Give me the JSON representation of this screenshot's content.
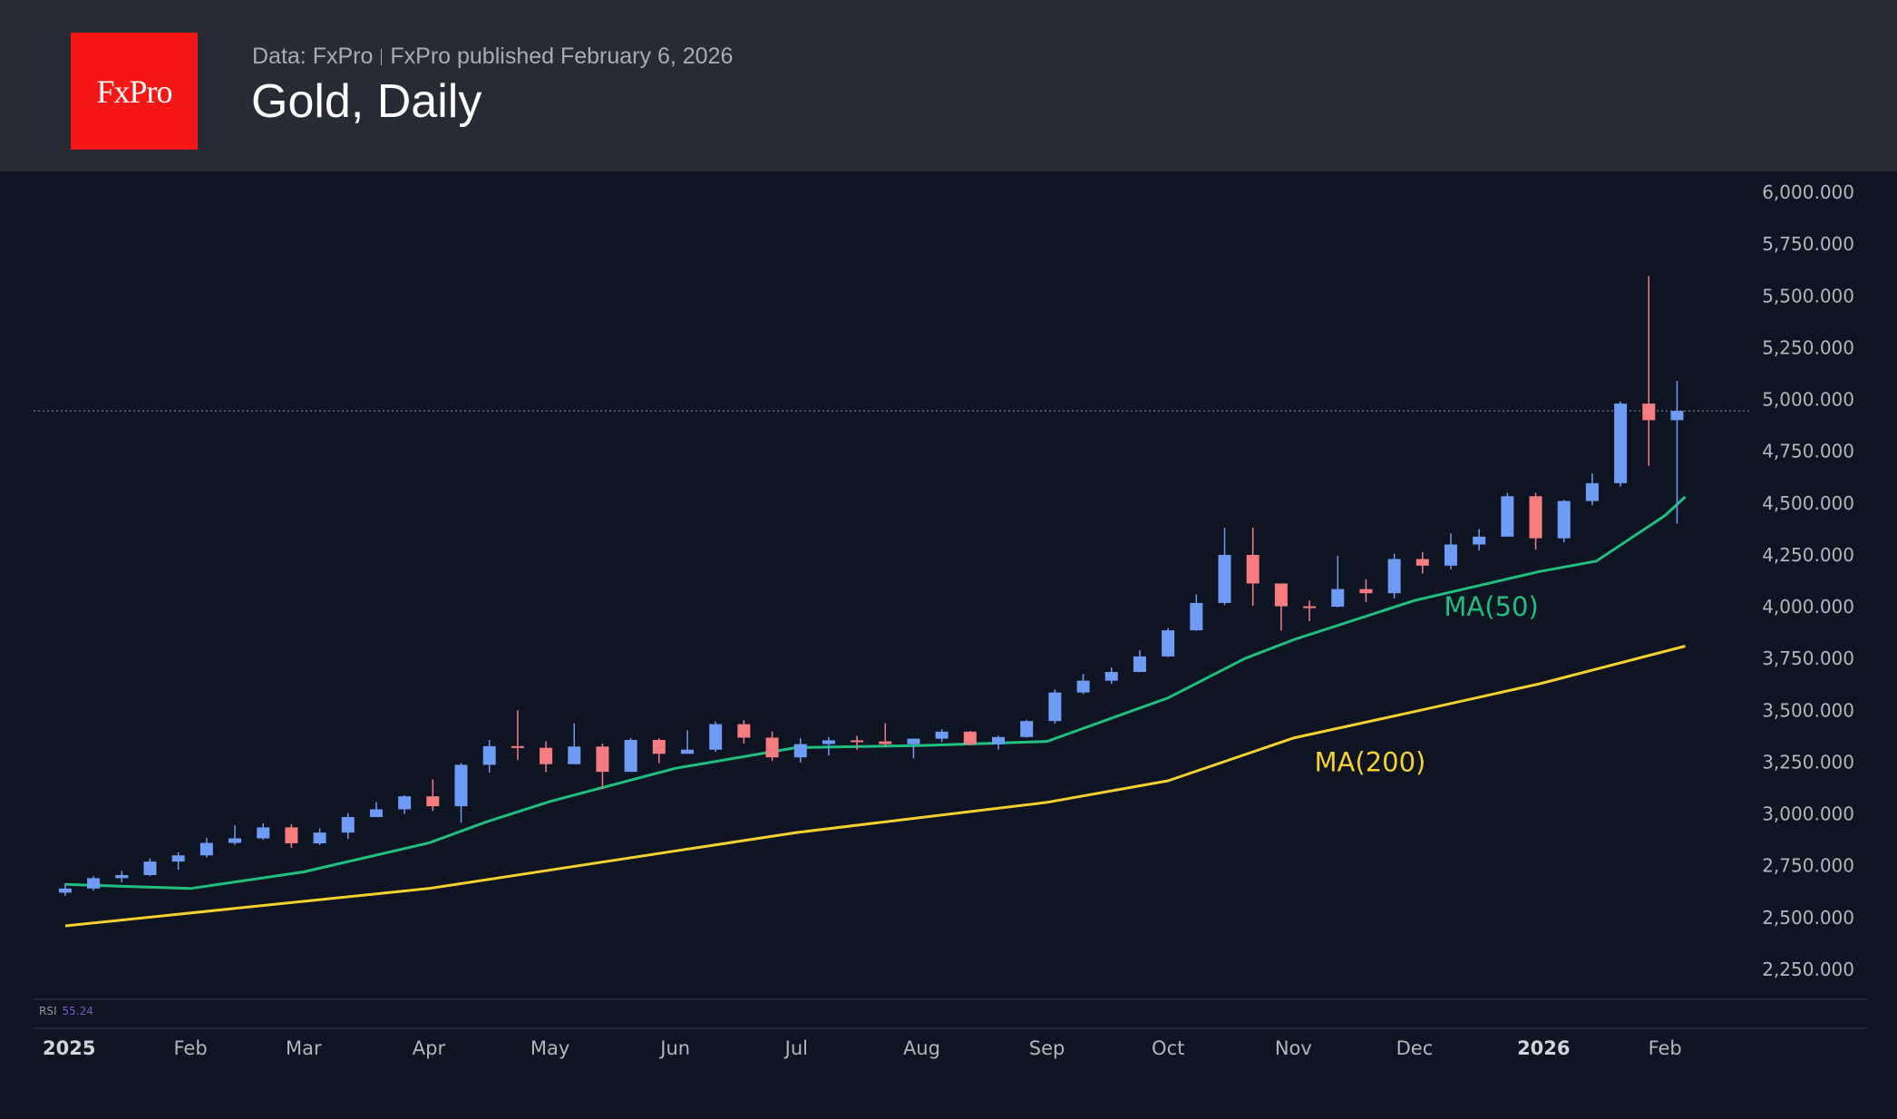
{
  "header": {
    "logo_text": "FxPro",
    "source": "Data: FxPro",
    "published": "FxPro published February 6, 2026",
    "title": "Gold, Daily"
  },
  "indicator": {
    "label": "RSI",
    "value": "55.24",
    "color": "#7e57c2"
  },
  "colors": {
    "up": "#6e9bf5",
    "down": "#f77c80",
    "ma50": "#1fbf7f",
    "ma200": "#f5d130",
    "background": "#0e1421",
    "header": "#282b36",
    "logo": "#f51616"
  },
  "chart_data": {
    "type": "candlestick",
    "title": "Gold, Daily",
    "ylim": [
      2125,
      6000
    ],
    "yticks": [
      "6,000.000",
      "5,750.000",
      "5,500.000",
      "5,250.000",
      "5,000.000",
      "4,750.000",
      "4,500.000",
      "4,250.000",
      "4,000.000",
      "3,750.000",
      "3,500.000",
      "3,250.000",
      "3,000.000",
      "2,750.000",
      "2,500.000",
      "2,250.000"
    ],
    "ytick_values": [
      6000,
      5750,
      5500,
      5250,
      5000,
      4750,
      4500,
      4250,
      4000,
      3750,
      3500,
      3250,
      3000,
      2750,
      2500,
      2250
    ],
    "xticks": [
      {
        "label": "2025",
        "date": "2025-01-01",
        "bold": true
      },
      {
        "label": "Feb",
        "date": "2025-02-01"
      },
      {
        "label": "Mar",
        "date": "2025-03-01"
      },
      {
        "label": "Apr",
        "date": "2025-04-01"
      },
      {
        "label": "May",
        "date": "2025-05-01"
      },
      {
        "label": "Jun",
        "date": "2025-06-01"
      },
      {
        "label": "Jul",
        "date": "2025-07-01"
      },
      {
        "label": "Aug",
        "date": "2025-08-01"
      },
      {
        "label": "Sep",
        "date": "2025-09-01"
      },
      {
        "label": "Oct",
        "date": "2025-10-01"
      },
      {
        "label": "Nov",
        "date": "2025-11-01"
      },
      {
        "label": "Dec",
        "date": "2025-12-01"
      },
      {
        "label": "2026",
        "date": "2026-01-01",
        "bold": true
      },
      {
        "label": "Feb",
        "date": "2026-02-01"
      }
    ],
    "last_price": 4945,
    "candles_ohlc": [
      [
        "2025-01-03",
        2620,
        2665,
        2605,
        2640
      ],
      [
        "2025-01-10",
        2640,
        2700,
        2630,
        2690
      ],
      [
        "2025-01-17",
        2690,
        2725,
        2670,
        2705
      ],
      [
        "2025-01-24",
        2705,
        2785,
        2700,
        2770
      ],
      [
        "2025-01-31",
        2770,
        2815,
        2730,
        2800
      ],
      [
        "2025-02-07",
        2800,
        2885,
        2790,
        2860
      ],
      [
        "2025-02-14",
        2860,
        2945,
        2850,
        2882
      ],
      [
        "2025-02-21",
        2882,
        2955,
        2875,
        2935
      ],
      [
        "2025-02-28",
        2935,
        2950,
        2835,
        2858
      ],
      [
        "2025-03-07",
        2858,
        2930,
        2850,
        2910
      ],
      [
        "2025-03-14",
        2910,
        3005,
        2880,
        2985
      ],
      [
        "2025-03-21",
        2985,
        3057,
        2990,
        3022
      ],
      [
        "2025-03-28",
        3022,
        3090,
        3000,
        3085
      ],
      [
        "2025-04-04",
        3085,
        3167,
        3015,
        3037
      ],
      [
        "2025-04-11",
        3037,
        3245,
        2957,
        3237
      ],
      [
        "2025-04-18",
        3237,
        3357,
        3200,
        3327
      ],
      [
        "2025-04-25",
        3327,
        3500,
        3260,
        3319
      ],
      [
        "2025-05-02",
        3319,
        3350,
        3202,
        3240
      ],
      [
        "2025-05-09",
        3240,
        3437,
        3240,
        3325
      ],
      [
        "2025-05-16",
        3325,
        3340,
        3120,
        3203
      ],
      [
        "2025-05-23",
        3203,
        3366,
        3205,
        3357
      ],
      [
        "2025-05-30",
        3357,
        3365,
        3245,
        3290
      ],
      [
        "2025-06-06",
        3290,
        3403,
        3290,
        3310
      ],
      [
        "2025-06-13",
        3310,
        3446,
        3300,
        3433
      ],
      [
        "2025-06-20",
        3433,
        3452,
        3340,
        3368
      ],
      [
        "2025-06-27",
        3368,
        3398,
        3255,
        3273
      ],
      [
        "2025-07-04",
        3273,
        3365,
        3248,
        3337
      ],
      [
        "2025-07-11",
        3337,
        3370,
        3282,
        3355
      ],
      [
        "2025-07-18",
        3355,
        3377,
        3309,
        3350
      ],
      [
        "2025-07-25",
        3350,
        3438,
        3324,
        3337
      ],
      [
        "2025-08-01",
        3337,
        3363,
        3268,
        3363
      ],
      [
        "2025-08-08",
        3363,
        3409,
        3347,
        3397
      ],
      [
        "2025-08-15",
        3397,
        3400,
        3330,
        3336
      ],
      [
        "2025-08-22",
        3336,
        3378,
        3311,
        3371
      ],
      [
        "2025-08-29",
        3371,
        3453,
        3368,
        3448
      ],
      [
        "2025-09-05",
        3448,
        3600,
        3436,
        3586
      ],
      [
        "2025-09-12",
        3586,
        3675,
        3578,
        3643
      ],
      [
        "2025-09-19",
        3643,
        3707,
        3627,
        3685
      ],
      [
        "2025-09-26",
        3685,
        3791,
        3684,
        3760
      ],
      [
        "2025-10-03",
        3760,
        3897,
        3757,
        3886
      ],
      [
        "2025-10-10",
        3886,
        4059,
        3884,
        4018
      ],
      [
        "2025-10-17",
        4018,
        4380,
        4007,
        4250
      ],
      [
        "2025-10-24",
        4250,
        4381,
        4004,
        4112
      ],
      [
        "2025-10-31",
        4112,
        4046,
        3886,
        4002
      ],
      [
        "2025-11-07",
        4002,
        4030,
        3930,
        4000
      ],
      [
        "2025-11-14",
        4000,
        4245,
        3997,
        4085
      ],
      [
        "2025-11-21",
        4085,
        4132,
        4022,
        4065
      ],
      [
        "2025-11-28",
        4065,
        4256,
        4040,
        4230
      ],
      [
        "2025-12-05",
        4230,
        4264,
        4160,
        4198
      ],
      [
        "2025-12-12",
        4198,
        4353,
        4180,
        4300
      ],
      [
        "2025-12-19",
        4300,
        4375,
        4271,
        4338
      ],
      [
        "2025-12-26",
        4338,
        4550,
        4340,
        4533
      ],
      [
        "2026-01-02",
        4533,
        4550,
        4275,
        4330
      ],
      [
        "2026-01-09",
        4330,
        4515,
        4310,
        4510
      ],
      [
        "2026-01-16",
        4510,
        4643,
        4490,
        4596
      ],
      [
        "2026-01-23",
        4596,
        4990,
        4580,
        4980
      ],
      [
        "2026-01-30",
        4980,
        5595,
        4680,
        4900
      ],
      [
        "2026-02-06",
        4900,
        5090,
        4400,
        4945
      ]
    ],
    "series": [
      {
        "name": "MA(50)",
        "color": "#1fbf7f",
        "points": [
          [
            "2025-01-01",
            2660
          ],
          [
            "2025-02-01",
            2640
          ],
          [
            "2025-03-01",
            2720
          ],
          [
            "2025-04-01",
            2860
          ],
          [
            "2025-04-15",
            2960
          ],
          [
            "2025-05-01",
            3060
          ],
          [
            "2025-06-01",
            3220
          ],
          [
            "2025-07-01",
            3320
          ],
          [
            "2025-08-01",
            3330
          ],
          [
            "2025-09-01",
            3350
          ],
          [
            "2025-10-01",
            3560
          ],
          [
            "2025-10-20",
            3750
          ],
          [
            "2025-11-01",
            3840
          ],
          [
            "2025-12-01",
            4030
          ],
          [
            "2026-01-01",
            4170
          ],
          [
            "2026-01-15",
            4220
          ],
          [
            "2026-02-01",
            4440
          ],
          [
            "2026-02-06",
            4530
          ]
        ]
      },
      {
        "name": "MA(200)",
        "color": "#f5d130",
        "points": [
          [
            "2025-01-01",
            2460
          ],
          [
            "2025-04-01",
            2640
          ],
          [
            "2025-07-01",
            2910
          ],
          [
            "2025-09-01",
            3056
          ],
          [
            "2025-10-01",
            3160
          ],
          [
            "2025-11-01",
            3366
          ],
          [
            "2025-12-01",
            3494
          ],
          [
            "2026-01-01",
            3628
          ],
          [
            "2026-02-06",
            3810
          ]
        ]
      }
    ],
    "annotations": [
      {
        "text": "MA(50)",
        "price": 4000,
        "date": "2025-12-20",
        "color": "#1fbf7f"
      },
      {
        "text": "MA(200)",
        "price": 3250,
        "date": "2025-11-20",
        "color": "#f5d130"
      }
    ]
  }
}
